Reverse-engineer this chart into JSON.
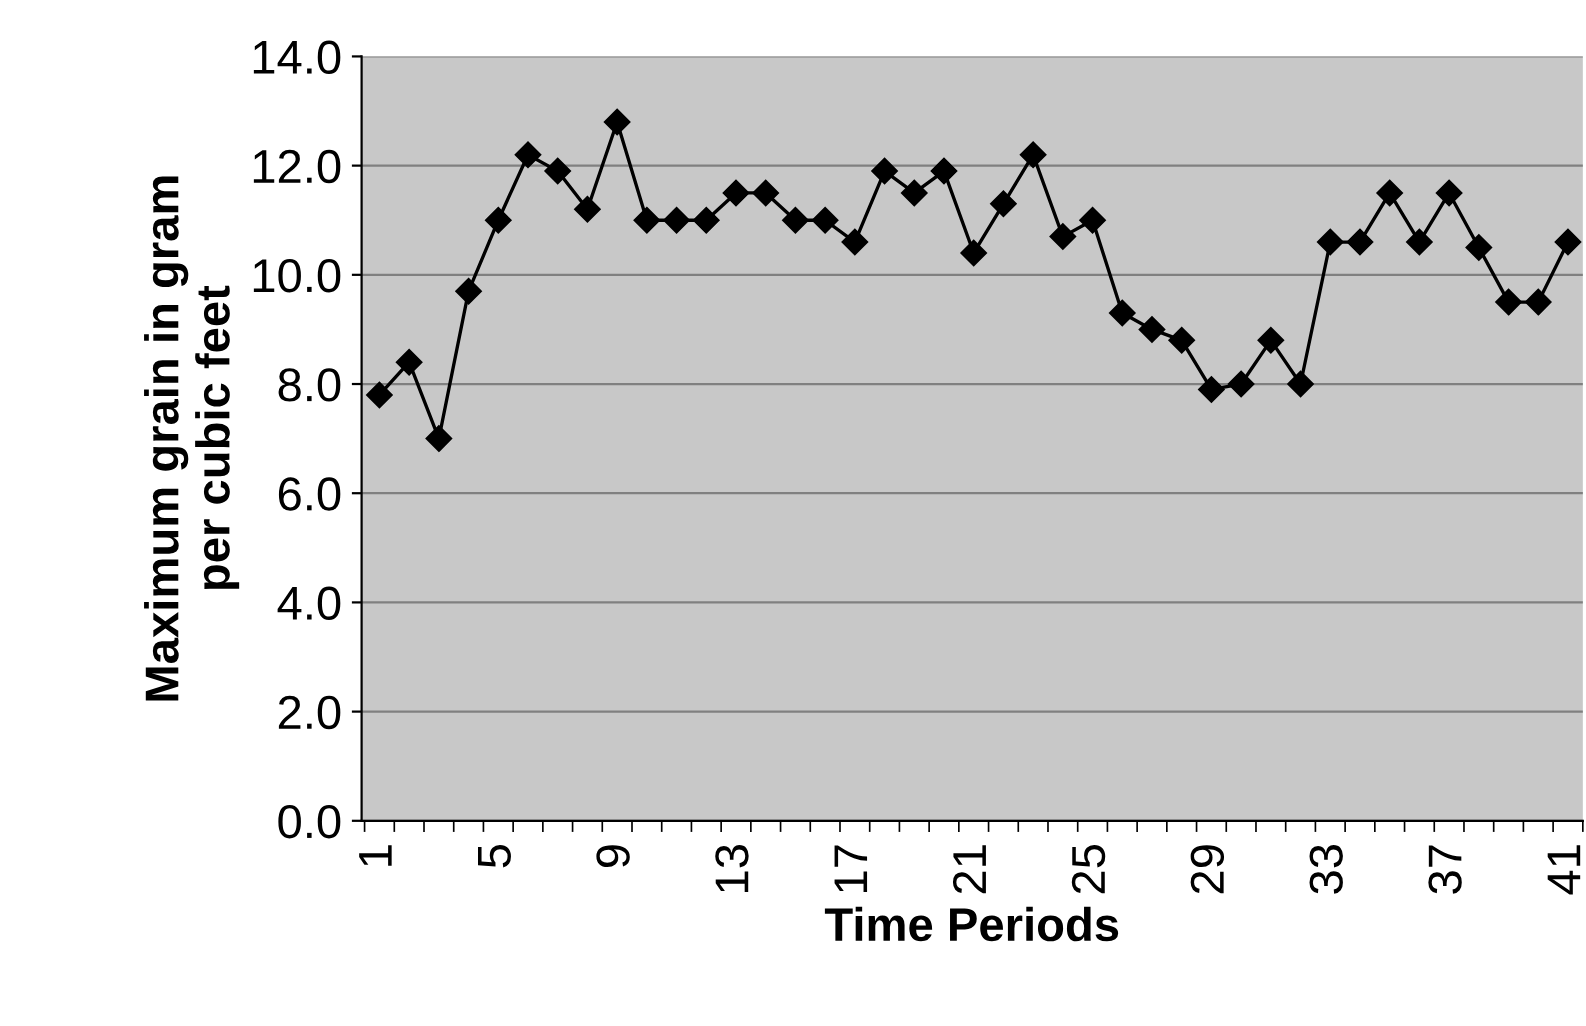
{
  "chart_data": {
    "type": "line",
    "xlabel": "Time Periods",
    "ylabel": "Maximum grain in gram\nper cubic feet",
    "categories": [
      "1",
      null,
      null,
      null,
      "5",
      null,
      null,
      null,
      "9",
      null,
      null,
      null,
      "13",
      null,
      null,
      null,
      "17",
      null,
      null,
      null,
      "21",
      null,
      null,
      null,
      "25",
      null,
      null,
      null,
      "29",
      null,
      null,
      null,
      "33",
      null,
      null,
      null,
      "37",
      null,
      null,
      null,
      "41"
    ],
    "series": [
      {
        "color": "#000000",
        "values": [
          7.8,
          8.4,
          7.0,
          9.7,
          11.0,
          12.2,
          11.9,
          11.2,
          12.8,
          11.0,
          11.0,
          11.0,
          11.5,
          11.5,
          11.0,
          11.0,
          10.6,
          11.9,
          11.5,
          11.9,
          10.4,
          11.3,
          12.2,
          10.7,
          11.0,
          9.3,
          9.0,
          8.8,
          7.9,
          8.0,
          8.8,
          8.0,
          10.6,
          10.6,
          11.5,
          10.6,
          11.5,
          10.5,
          9.5,
          9.5,
          10.6
        ]
      }
    ],
    "ylim": [
      0,
      14
    ],
    "yticks": [
      {
        "value": 0,
        "label": "0.0"
      },
      {
        "value": 2,
        "label": "2.0"
      },
      {
        "value": 4,
        "label": "4.0"
      },
      {
        "value": 6,
        "label": "6.0"
      },
      {
        "value": 8,
        "label": "8.0"
      },
      {
        "value": 10,
        "label": "10.0"
      },
      {
        "value": 12,
        "label": "12.0"
      },
      {
        "value": 14,
        "label": "14.0"
      }
    ],
    "grid": "y",
    "marker": "diamond",
    "line_style": "solid",
    "legend": false
  }
}
